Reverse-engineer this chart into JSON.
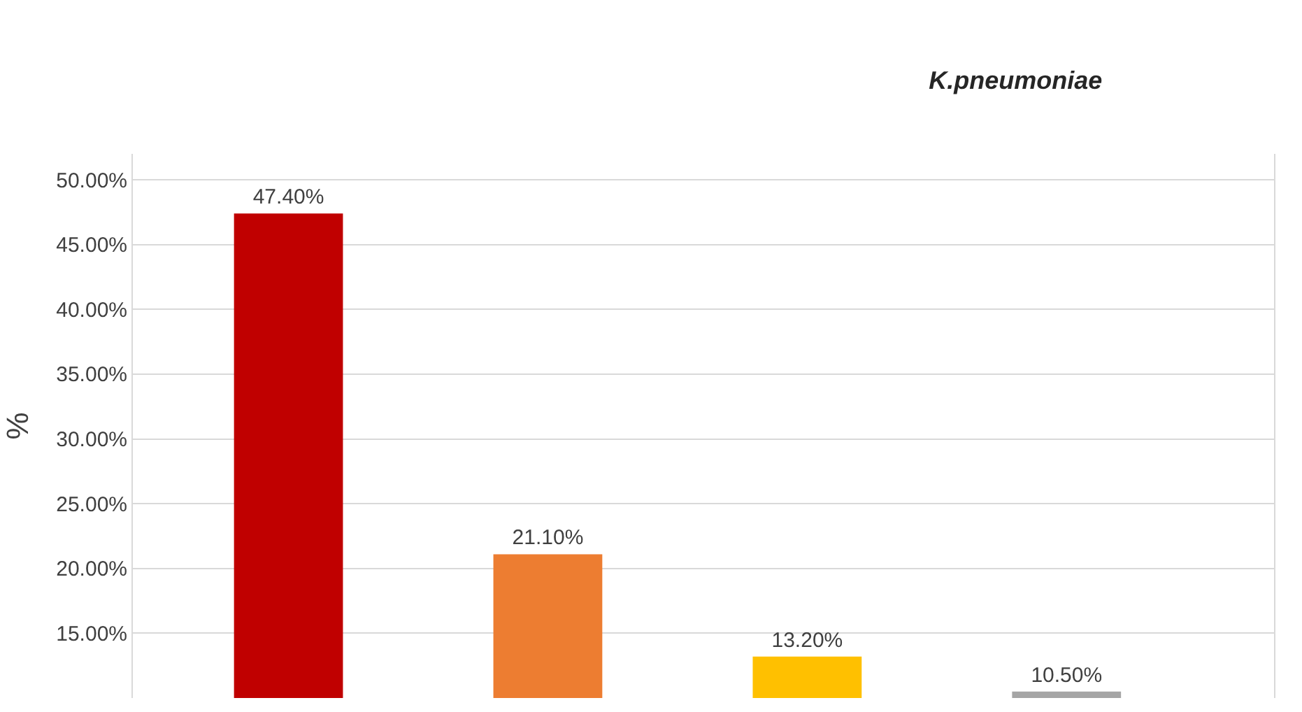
{
  "chart_data": {
    "type": "bar",
    "title": "K.pneumoniae",
    "ylabel": "%",
    "categories": [
      null,
      null,
      null,
      null
    ],
    "values": [
      47.4,
      21.1,
      13.2,
      10.5
    ],
    "value_labels": [
      "47.40%",
      "21.10%",
      "13.20%",
      "10.50%"
    ],
    "colors": [
      "#c00000",
      "#ed7d31",
      "#ffc000",
      "#a5a5a5"
    ],
    "ylim": [
      10,
      52
    ],
    "yticks": [
      {
        "value": 15,
        "label": "15.00%"
      },
      {
        "value": 20,
        "label": "20.00%"
      },
      {
        "value": 25,
        "label": "25.00%"
      },
      {
        "value": 30,
        "label": "30.00%"
      },
      {
        "value": 35,
        "label": "35.00%"
      },
      {
        "value": 40,
        "label": "40.00%"
      },
      {
        "value": 45,
        "label": "45.00%"
      },
      {
        "value": 50,
        "label": "50.00%"
      }
    ],
    "grid": "y"
  }
}
